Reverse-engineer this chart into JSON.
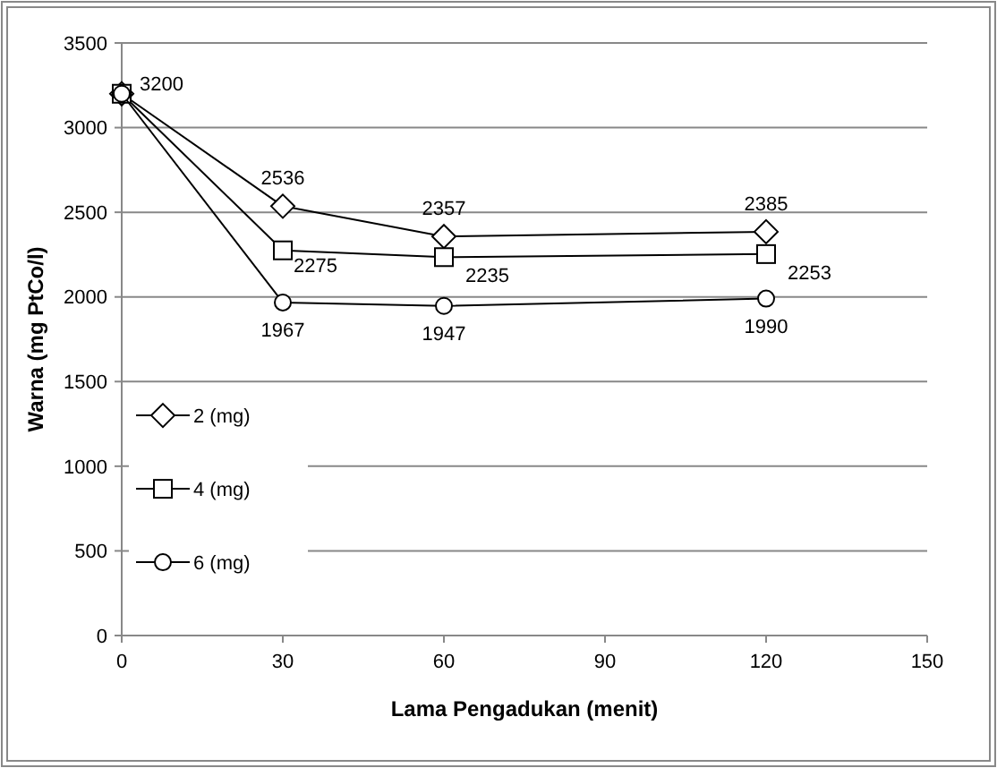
{
  "chart_data": {
    "type": "line",
    "xlabel": "Lama Pengadukan (menit)",
    "ylabel": "Warna (mg PtCo/l)",
    "x": [
      0,
      30,
      60,
      120
    ],
    "xlim": [
      0,
      150
    ],
    "xticks": [
      0,
      30,
      60,
      90,
      120,
      150
    ],
    "ylim": [
      0,
      3500
    ],
    "yticks": [
      0,
      500,
      1000,
      1500,
      2000,
      2500,
      3000,
      3500
    ],
    "grid": "y",
    "legend": "bottom left",
    "line_style": "solid",
    "series": [
      {
        "name": "2 (mg)",
        "color": "#000000",
        "marker": "diamond",
        "values": [
          3200,
          2536,
          2357,
          2385
        ],
        "value_labels": [
          "3200",
          "2536",
          "2357",
          "2385"
        ]
      },
      {
        "name": "4 (mg)",
        "color": "#000000",
        "marker": "square",
        "values": [
          3200,
          2275,
          2235,
          2253
        ],
        "value_labels": [
          null,
          "2275",
          "2235",
          "2253"
        ]
      },
      {
        "name": "6 (mg)",
        "color": "#000000",
        "marker": "circle",
        "values": [
          3200,
          1967,
          1947,
          1990
        ],
        "value_labels": [
          null,
          "1967",
          "1947",
          "1990"
        ]
      }
    ]
  }
}
